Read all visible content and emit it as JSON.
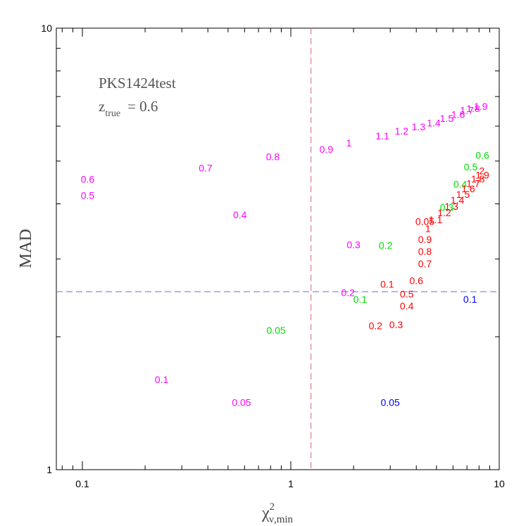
{
  "chart_data": {
    "type": "scatter",
    "title": "",
    "annotation": {
      "name": "PKS1424test",
      "z_symbol": "z",
      "z_sub": "true",
      "z_eq": "= 0.6"
    },
    "xlabel": {
      "symbol": "χ",
      "sup": "2",
      "sub": "ν,min"
    },
    "ylabel": "MAD",
    "xscale": "log",
    "yscale": "log",
    "xlim": [
      0.075,
      10
    ],
    "ylim": [
      1,
      10
    ],
    "xticks": [
      0.1,
      1,
      10
    ],
    "xtick_labels": [
      "0.1",
      "1",
      "10"
    ],
    "yticks": [
      1,
      10
    ],
    "ytick_labels": [
      "1",
      "10"
    ],
    "reference_lines": [
      {
        "orientation": "vertical",
        "value": 1.25,
        "color": "#d9667a"
      },
      {
        "orientation": "horizontal",
        "value": 2.53,
        "color": "#6670e0"
      }
    ],
    "series": [
      {
        "color": "#ff00ff",
        "points": [
          {
            "label": "0.05",
            "x": 0.58,
            "y": 1.42
          },
          {
            "label": "0.1",
            "x": 0.24,
            "y": 1.6
          },
          {
            "label": "0.2",
            "x": 1.88,
            "y": 2.52
          },
          {
            "label": "0.3",
            "x": 2.0,
            "y": 3.23
          },
          {
            "label": "0.4",
            "x": 0.57,
            "y": 3.78
          },
          {
            "label": "0.5",
            "x": 0.106,
            "y": 4.18
          },
          {
            "label": "0.6",
            "x": 0.106,
            "y": 4.55
          },
          {
            "label": "0.7",
            "x": 0.39,
            "y": 4.82
          },
          {
            "label": "0.8",
            "x": 0.82,
            "y": 5.12
          },
          {
            "label": "0.9",
            "x": 1.48,
            "y": 5.32
          },
          {
            "label": "1",
            "x": 1.9,
            "y": 5.5
          },
          {
            "label": "1.1",
            "x": 2.75,
            "y": 5.7
          },
          {
            "label": "1.2",
            "x": 3.4,
            "y": 5.85
          },
          {
            "label": "1.3",
            "x": 4.1,
            "y": 5.98
          },
          {
            "label": "1.4",
            "x": 4.85,
            "y": 6.1
          },
          {
            "label": "1.5",
            "x": 5.6,
            "y": 6.25
          },
          {
            "label": "1.6",
            "x": 6.35,
            "y": 6.38
          },
          {
            "label": "1.7",
            "x": 7.0,
            "y": 6.52
          },
          {
            "label": "1.8",
            "x": 7.5,
            "y": 6.58
          },
          {
            "label": "1.9",
            "x": 8.15,
            "y": 6.65
          }
        ]
      },
      {
        "color": "#00e000",
        "points": [
          {
            "label": "0.05",
            "x": 0.85,
            "y": 2.07
          },
          {
            "label": "0.1",
            "x": 2.15,
            "y": 2.43
          },
          {
            "label": "0.2",
            "x": 2.85,
            "y": 3.22
          },
          {
            "label": "0.3",
            "x": 5.6,
            "y": 3.93
          },
          {
            "label": "0.4",
            "x": 6.5,
            "y": 4.43
          },
          {
            "label": "0.5",
            "x": 7.3,
            "y": 4.85
          },
          {
            "label": "0.6",
            "x": 8.3,
            "y": 5.15
          }
        ]
      },
      {
        "color": "#ff0000",
        "points": [
          {
            "label": "0.05",
            "x": 4.4,
            "y": 3.65
          },
          {
            "label": "0.1",
            "x": 2.9,
            "y": 2.63
          },
          {
            "label": "0.2",
            "x": 2.55,
            "y": 2.12
          },
          {
            "label": "0.3",
            "x": 3.2,
            "y": 2.13
          },
          {
            "label": "0.4",
            "x": 3.6,
            "y": 2.35
          },
          {
            "label": "0.5",
            "x": 3.6,
            "y": 2.5
          },
          {
            "label": "0.6",
            "x": 4.0,
            "y": 2.68
          },
          {
            "label": "0.7",
            "x": 4.4,
            "y": 2.93
          },
          {
            "label": "0.8",
            "x": 4.4,
            "y": 3.12
          },
          {
            "label": "0.9",
            "x": 4.4,
            "y": 3.32
          },
          {
            "label": "1",
            "x": 4.55,
            "y": 3.52
          },
          {
            "label": "1.1",
            "x": 4.95,
            "y": 3.68
          },
          {
            "label": "1.2",
            "x": 5.45,
            "y": 3.82
          },
          {
            "label": "1.3",
            "x": 5.9,
            "y": 3.95
          },
          {
            "label": "1.4",
            "x": 6.3,
            "y": 4.08
          },
          {
            "label": "1.5",
            "x": 6.7,
            "y": 4.2
          },
          {
            "label": "1.6",
            "x": 7.1,
            "y": 4.33
          },
          {
            "label": "1.7",
            "x": 7.5,
            "y": 4.45
          },
          {
            "label": "1.8",
            "x": 7.9,
            "y": 4.56
          },
          {
            "label": "1.9",
            "x": 8.3,
            "y": 4.65
          },
          {
            "label": "2",
            "x": 8.25,
            "y": 4.75
          }
        ]
      },
      {
        "color": "#0000ff",
        "points": [
          {
            "label": "0.05",
            "x": 3.0,
            "y": 1.42
          },
          {
            "label": "0.1",
            "x": 7.25,
            "y": 2.43
          }
        ]
      }
    ]
  }
}
